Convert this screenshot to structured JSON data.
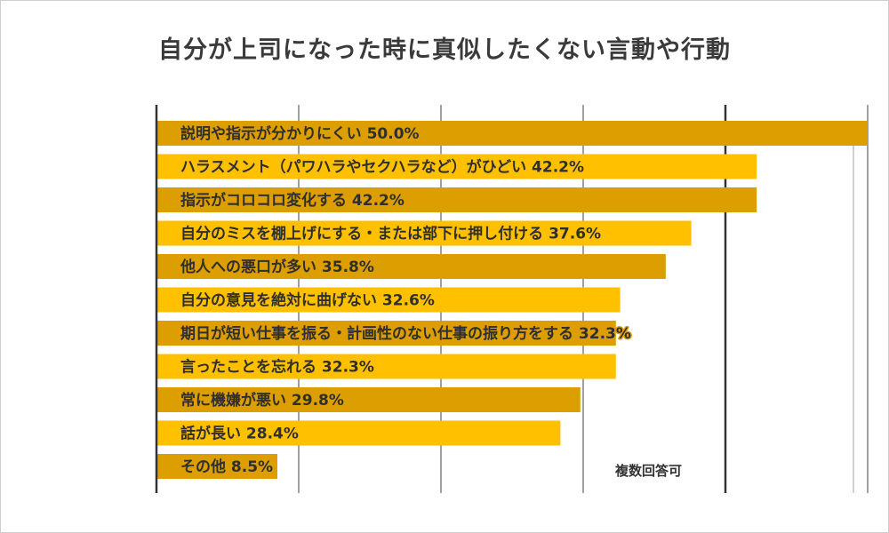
{
  "chart_data": {
    "type": "bar",
    "orientation": "horizontal",
    "title": "自分が上司になった時に真似したくない言動や行動",
    "note": "複数回答可",
    "xlim": [
      0,
      60
    ],
    "grid": true,
    "colors": [
      "#dc9e00",
      "#ffc000"
    ],
    "categories": [
      "説明や指示が分かりにくい",
      "ハラスメント（パワハラやセクハラなど）がひどい",
      "指示がコロコロ変化する",
      "自分のミスを棚上げにする・または部下に押し付ける",
      "他人への悪口が多い",
      "自分の意見を絶対に曲げない",
      "期日が短い仕事を振る・計画性のない仕事の振り方をする",
      "言ったことを忘れる",
      "常に機嫌が悪い",
      "話が長い",
      "その他"
    ],
    "values": [
      50.0,
      42.2,
      42.2,
      37.6,
      35.8,
      32.6,
      32.3,
      32.3,
      29.8,
      28.4,
      8.5
    ],
    "labels": [
      "説明や指示が分かりにくい 50.0%",
      "ハラスメント（パワハラやセクハラなど）がひどい 42.2%",
      "指示がコロコロ変化する 42.2%",
      "自分のミスを棚上げにする・または部下に押し付ける 37.6%",
      "他人への悪口が多い 35.8%",
      "自分の意見を絶対に曲げない 32.6%",
      "期日が短い仕事を振る・計画性のない仕事の振り方をする 32.3%",
      "言ったことを忘れる 32.3%",
      "常に機嫌が悪い 29.8%",
      "話が長い 28.4%",
      "その他 8.5%"
    ]
  }
}
